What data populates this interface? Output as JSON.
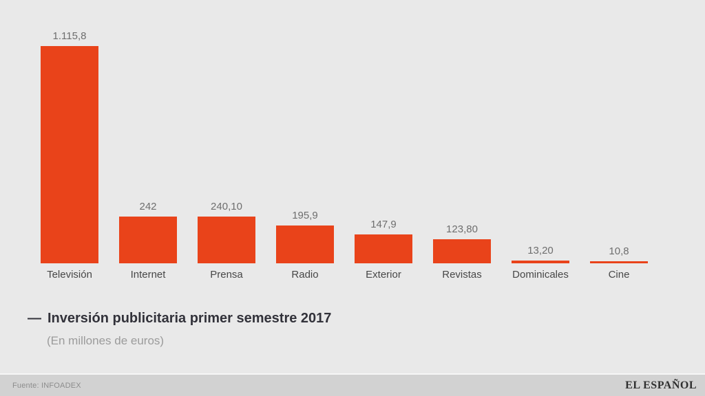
{
  "page": {
    "background": "#e9e9e9"
  },
  "chart_data": {
    "type": "bar",
    "categories": [
      "Televisión",
      "Internet",
      "Prensa",
      "Radio",
      "Exterior",
      "Revistas",
      "Dominicales",
      "Cine"
    ],
    "values": [
      1115.8,
      242,
      240.1,
      195.9,
      147.9,
      123.8,
      13.2,
      10.8
    ],
    "value_labels": [
      "1.115,8",
      "242",
      "240,10",
      "195,9",
      "147,9",
      "123,80",
      "13,20",
      "10,8"
    ],
    "title": "Inversión publicitaria primer semestre 2017",
    "subtitle": "(En millones de euros)",
    "xlabel": "",
    "ylabel": "",
    "ylim": [
      0,
      1115.8
    ],
    "grid": false,
    "legend": false,
    "bar_color": "#e9431a"
  },
  "title_block": {
    "prefix": "—"
  },
  "footer": {
    "source": "Fuente: INFOADEX",
    "brand": "EL ESPAÑOL"
  }
}
